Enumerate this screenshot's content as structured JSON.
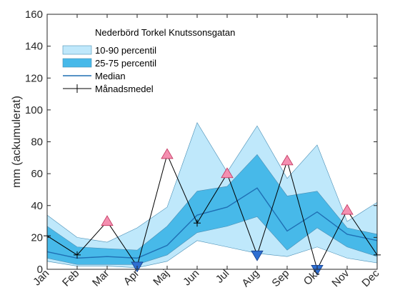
{
  "chart_data": {
    "type": "area",
    "title": "Nederbörd Torkel Knutssonsgatan",
    "ylabel": "mm (ackumulerat)",
    "xlabel": "",
    "categories": [
      "Jan",
      "Feb",
      "Mar",
      "Apr",
      "Maj",
      "Jun",
      "Jul",
      "Aug",
      "Sep",
      "Okt",
      "Nov",
      "Dec"
    ],
    "ylim": [
      0,
      160
    ],
    "yticks": [
      0,
      20,
      40,
      60,
      80,
      100,
      120,
      140,
      160
    ],
    "legend_position": "top-left",
    "grid": false,
    "series": [
      {
        "name": "10-90 percentil",
        "kind": "band",
        "lower": [
          5,
          2,
          2,
          1,
          5,
          18,
          14,
          10,
          8,
          14,
          7,
          4
        ],
        "upper": [
          34,
          20,
          17,
          26,
          39,
          92,
          61,
          90,
          57,
          78,
          30,
          42
        ],
        "color": "#bfe8fb"
      },
      {
        "name": "25-75 percentil",
        "kind": "band",
        "lower": [
          7,
          3,
          3,
          3,
          9,
          23,
          27,
          33,
          12,
          26,
          14,
          8
        ],
        "upper": [
          27,
          14,
          13,
          12,
          27,
          49,
          52,
          72,
          46,
          49,
          26,
          22
        ],
        "color": "#47b9e9"
      },
      {
        "name": "Median",
        "kind": "line",
        "values": [
          11,
          7,
          8,
          7,
          15,
          34,
          39,
          51,
          24,
          36,
          22,
          18
        ],
        "color": "#1f6fb4"
      },
      {
        "name": "Månadsmedel",
        "kind": "line-marker",
        "values": [
          21,
          9,
          30,
          2,
          72,
          29,
          60,
          9,
          68,
          0,
          37,
          9
        ],
        "color": "#000000"
      }
    ],
    "markers": [
      {
        "category": "Mar",
        "value": 30,
        "shape": "triangle-up"
      },
      {
        "category": "Apr",
        "value": 2,
        "shape": "triangle-down"
      },
      {
        "category": "Maj",
        "value": 72,
        "shape": "triangle-up"
      },
      {
        "category": "Jul",
        "value": 60,
        "shape": "triangle-up"
      },
      {
        "category": "Aug",
        "value": 9,
        "shape": "triangle-down"
      },
      {
        "category": "Sep",
        "value": 68,
        "shape": "triangle-up"
      },
      {
        "category": "Okt",
        "value": 0,
        "shape": "triangle-down"
      },
      {
        "category": "Nov",
        "value": 37,
        "shape": "triangle-up"
      }
    ],
    "marker_colors": {
      "up": "#f48fb0",
      "up_edge": "#c0305a",
      "down": "#2e6fd1",
      "down_edge": "#153f8a"
    }
  }
}
